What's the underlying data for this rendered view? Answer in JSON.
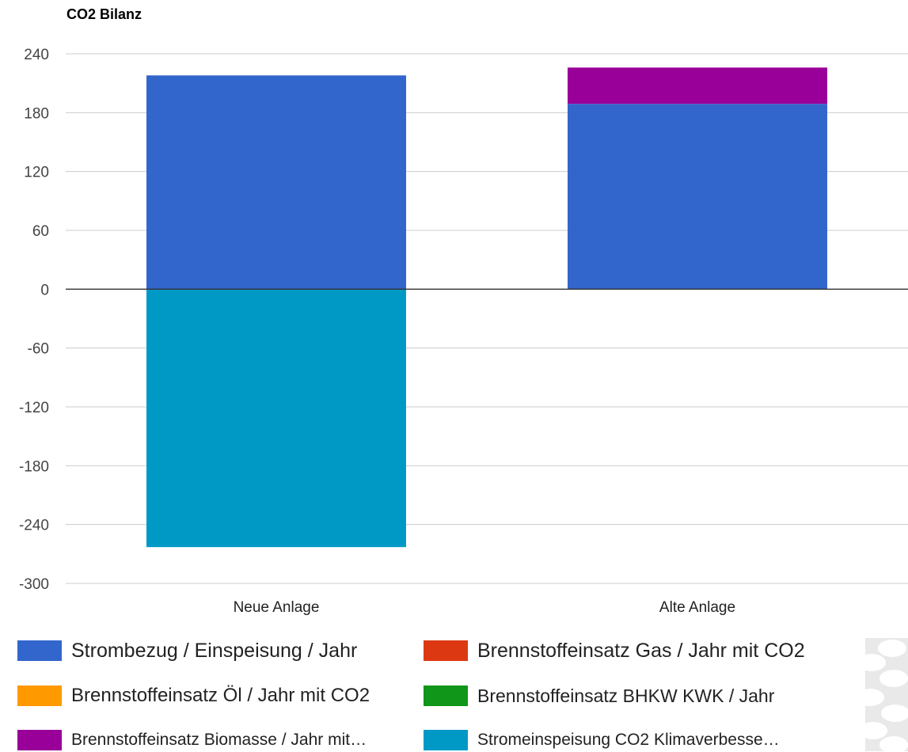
{
  "chart_data": {
    "type": "bar",
    "stacked": true,
    "title": "CO2 Bilanz",
    "xlabel": "",
    "ylabel": "",
    "categories": [
      "Neue Anlage",
      "Alte Anlage"
    ],
    "ylim": [
      -300,
      240
    ],
    "yticks": [
      240,
      180,
      120,
      60,
      0,
      -60,
      -120,
      -180,
      -240,
      -300
    ],
    "grid": true,
    "legend_position": "bottom",
    "series": [
      {
        "name": "Strombezug / Einspeisung / Jahr",
        "color": "#3366cc",
        "values": [
          218,
          189
        ]
      },
      {
        "name": "Brennstoffeinsatz Gas / Jahr mit CO2",
        "color": "#dc3912",
        "values": [
          0,
          0
        ]
      },
      {
        "name": "Brennstoffeinsatz Öl / Jahr mit CO2",
        "color": "#ff9900",
        "values": [
          0,
          0
        ]
      },
      {
        "name": "Brennstoffeinsatz BHKW KWK / Jahr",
        "color": "#109618",
        "values": [
          0,
          0
        ]
      },
      {
        "name": "Brennstoffeinsatz Biomasse / Jahr mit…",
        "color": "#990099",
        "values": [
          0,
          37
        ]
      },
      {
        "name": "Stromeinspeisung CO2 Klimaverbesse…",
        "color": "#0099c6",
        "values": [
          -263,
          0
        ]
      }
    ]
  }
}
